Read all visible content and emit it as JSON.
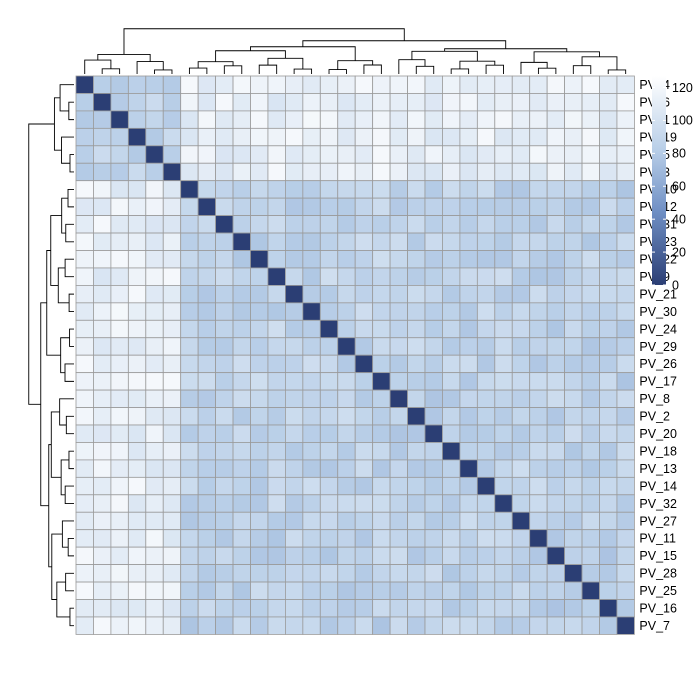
{
  "chart_data": {
    "type": "heatmap",
    "title": "",
    "labels": [
      "PV_4",
      "PV_6",
      "PV_1",
      "PV_19",
      "PV_5",
      "PV_3",
      "PV_10",
      "PV_12",
      "PV_31",
      "PV_23",
      "PV_22",
      "PV_9",
      "PV_21",
      "PV_30",
      "PV_24",
      "PV_29",
      "PV_26",
      "PV_17",
      "PV_8",
      "PV_2",
      "PV_20",
      "PV_18",
      "PV_13",
      "PV_14",
      "PV_32",
      "PV_27",
      "PV_11",
      "PV_15",
      "PV_28",
      "PV_25",
      "PV_16",
      "PV_7"
    ],
    "diagonal_value": 0,
    "value_range": [
      0,
      127
    ],
    "colorbar": {
      "ticks": [
        0,
        20,
        40,
        60,
        80,
        100,
        120
      ],
      "colors": [
        "#2b3e74",
        "#ffffff"
      ]
    },
    "row_dendrogram": true,
    "column_dendrogram": true,
    "groups": [
      {
        "members": [
          "PV_4",
          "PV_6",
          "PV_1",
          "PV_19",
          "PV_5",
          "PV_3"
        ],
        "within": 88,
        "to_right_block": 112
      },
      {
        "members": [
          "PV_10",
          "PV_12",
          "PV_31",
          "PV_23",
          "PV_22",
          "PV_9",
          "PV_21",
          "PV_30"
        ],
        "within": 86,
        "to_right_block": 90
      },
      {
        "members": [
          "PV_24",
          "PV_29",
          "PV_26",
          "PV_17"
        ],
        "within": 84,
        "to_right_block": 88
      },
      {
        "members": [
          "PV_8",
          "PV_2",
          "PV_20",
          "PV_18",
          "PV_13",
          "PV_14",
          "PV_32"
        ],
        "within": 84,
        "to_right_block": 88
      },
      {
        "members": [
          "PV_27",
          "PV_11",
          "PV_15",
          "PV_28",
          "PV_25",
          "PV_16",
          "PV_7"
        ],
        "within": 84,
        "to_right_block": 88
      }
    ]
  }
}
